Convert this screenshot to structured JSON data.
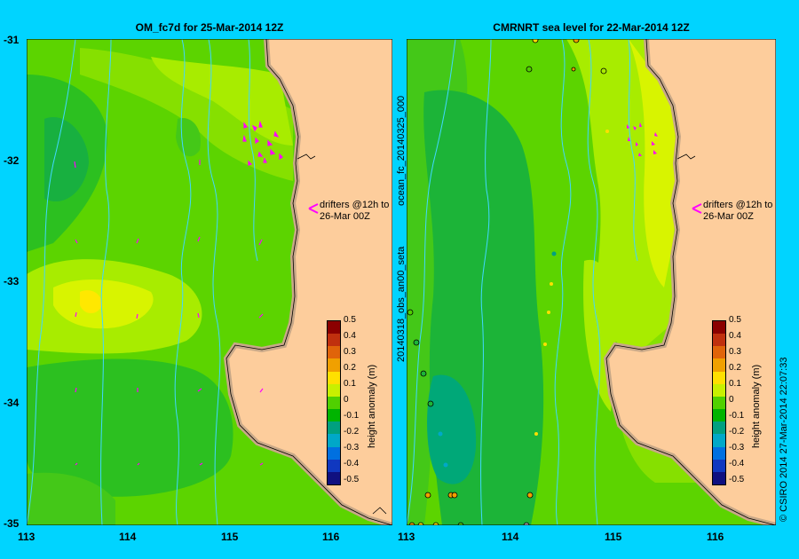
{
  "left_panel": {
    "title": "OM_fc7d for 25-Mar-2014 12Z",
    "annotation_line1": "drifters @12h to",
    "annotation_line2": "26-Mar 00Z"
  },
  "right_panel": {
    "title": "CMRNRT sea level  for 22-Mar-2014 12Z",
    "annotation_line1": "drifters @12h to",
    "annotation_line2": "26-Mar 00Z",
    "side_label_upper": "ocean_fc_20140325_000",
    "side_label_lower": "20140318_obs_an00_seta"
  },
  "y_ticks": [
    "-31",
    "-32",
    "-33",
    "-34",
    "-35"
  ],
  "x_ticks": [
    "113",
    "114",
    "115",
    "116"
  ],
  "colorbar": {
    "label": "height anomaly (m)",
    "ticks": [
      "0.5",
      "0.4",
      "0.3",
      "0.2",
      "0.1",
      "0",
      "-0.1",
      "-0.2",
      "-0.3",
      "-0.4",
      "-0.5"
    ],
    "colors": [
      "#8b0000",
      "#c0300e",
      "#e0640a",
      "#f0a000",
      "#ffe000",
      "#c8f000",
      "#50d000",
      "#00b400",
      "#00a080",
      "#00a8c8",
      "#0070e0",
      "#1038c0",
      "#101080"
    ]
  },
  "credit": "© CSIRO 2014   27-Mar-2014 22:07:33",
  "colors": {
    "background": "#00d4ff",
    "land": "#fdcd9c",
    "shore": "#c8a888",
    "drifter": "#ff00ff",
    "bathy": "#40d8ff"
  }
}
